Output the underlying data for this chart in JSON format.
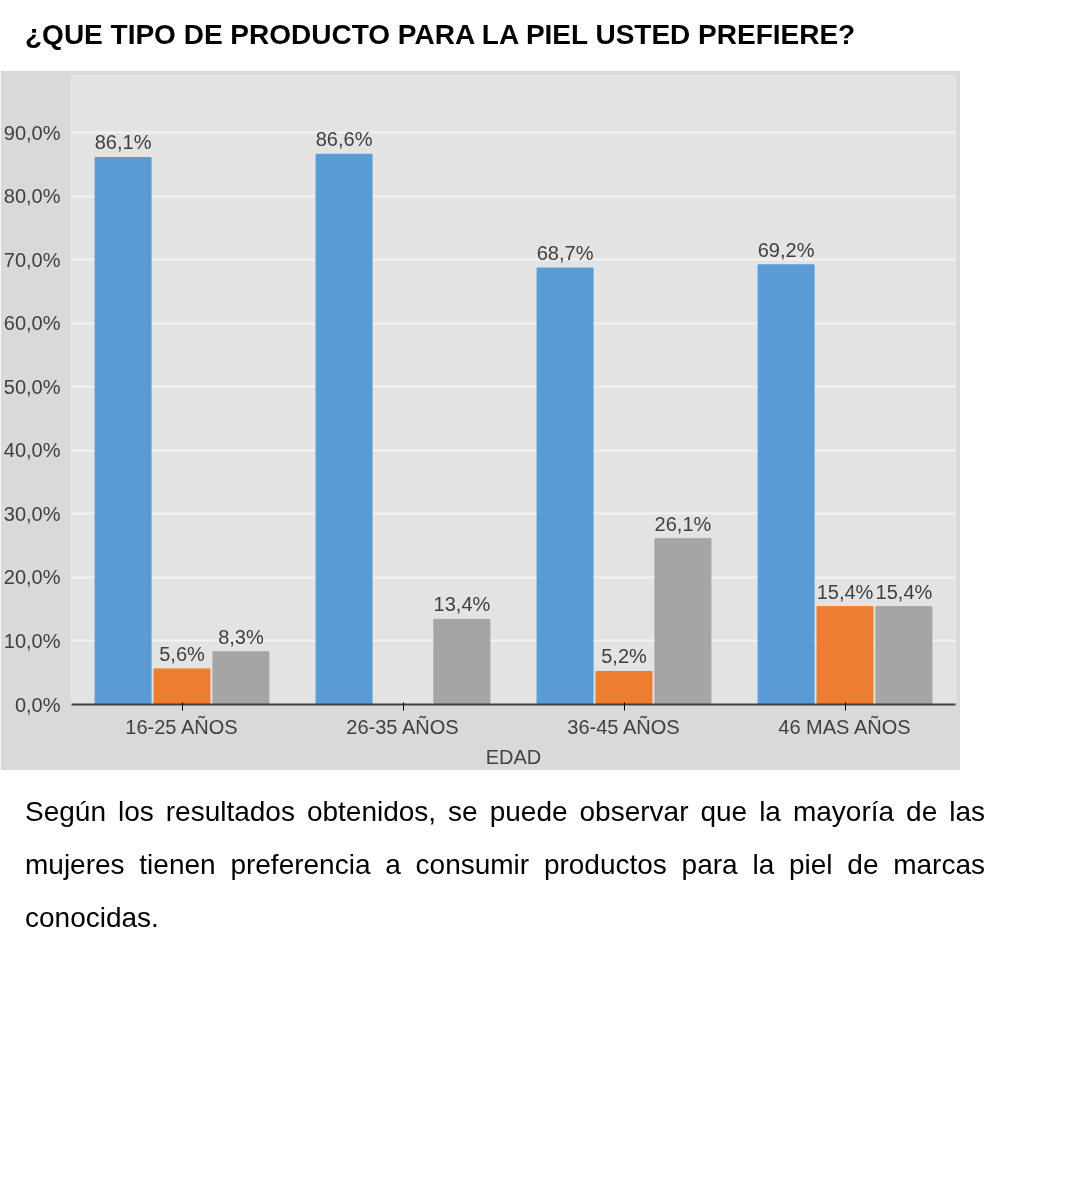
{
  "chart_data": {
    "type": "bar",
    "title": "¿QUE TIPO DE PRODUCTO PARA LA PIEL USTED PREFIERE?",
    "xlabel": "EDAD",
    "categories": [
      "16-25 AÑOS",
      "26-35 AÑOS",
      "36-45 AÑOS",
      "46 MAS AÑOS"
    ],
    "series": [
      {
        "color": "#5b9bd5",
        "values": [
          86.1,
          86.6,
          68.7,
          69.2
        ],
        "value_labels": [
          "86,1%",
          "86,6%",
          "68,7%",
          "69,2%"
        ]
      },
      {
        "color": "#ed7d31",
        "values": [
          5.6,
          null,
          5.2,
          15.4
        ],
        "value_labels": [
          "5,6%",
          null,
          "5,2%",
          "15,4%"
        ]
      },
      {
        "color": "#a5a5a5",
        "values": [
          8.3,
          13.4,
          26.1,
          15.4
        ],
        "value_labels": [
          "8,3%",
          "13,4%",
          "26,1%",
          "15,4%"
        ]
      }
    ],
    "ylim": [
      0,
      90
    ],
    "yticks": [
      {
        "value": 0,
        "label": "0,0%"
      },
      {
        "value": 10,
        "label": "10,0%"
      },
      {
        "value": 20,
        "label": "20,0%"
      },
      {
        "value": 30,
        "label": "30,0%"
      },
      {
        "value": 40,
        "label": "40,0%"
      },
      {
        "value": 50,
        "label": "50,0%"
      },
      {
        "value": 60,
        "label": "60,0%"
      },
      {
        "value": 70,
        "label": "70,0%"
      },
      {
        "value": 80,
        "label": "80,0%"
      },
      {
        "value": 90,
        "label": "90,0%"
      }
    ],
    "grid": "y",
    "annotations": [
      "Según los resultados obtenidos, se puede observar que la mayoría de las mujeres tienen preferencia a consumir productos para la piel de marcas conocidas."
    ]
  }
}
